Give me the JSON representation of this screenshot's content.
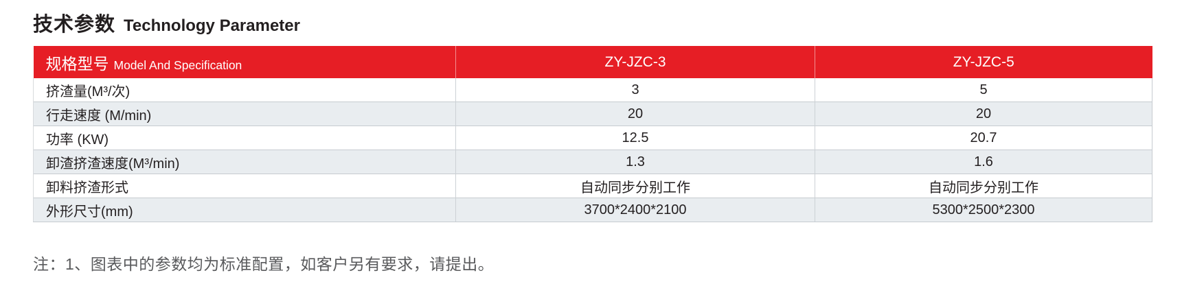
{
  "title": {
    "zh": "技术参数",
    "en": "Technology Parameter"
  },
  "colors": {
    "accent_red": "#e61e25",
    "alt_row_gray": "#e9edf0",
    "row_border": "#c6cbd0",
    "title_text": "#231f20",
    "note_text": "#595a5c",
    "header_text": "#ffffff"
  },
  "table": {
    "header": {
      "spec_zh": "规格型号",
      "spec_en": "Model And Specification",
      "model_1": "ZY-JZC-3",
      "model_2": "ZY-JZC-5"
    },
    "rows": [
      {
        "label": "挤渣量(M³/次)",
        "values": [
          "3",
          "5"
        ]
      },
      {
        "label": "行走速度 (M/min)",
        "values": [
          "20",
          "20"
        ]
      },
      {
        "label": "功率 (KW)",
        "values": [
          "12.5",
          "20.7"
        ]
      },
      {
        "label": "卸渣挤渣速度(M³/min)",
        "values": [
          "1.3",
          "1.6"
        ]
      },
      {
        "label": "卸料挤渣形式",
        "values": [
          "自动同步分别工作",
          "自动同步分别工作"
        ]
      },
      {
        "label": "外形尺寸(mm)",
        "values": [
          "3700*2400*2100",
          "5300*2500*2300"
        ]
      }
    ]
  },
  "note": "注：1、图表中的参数均为标准配置，如客户另有要求，请提出。"
}
